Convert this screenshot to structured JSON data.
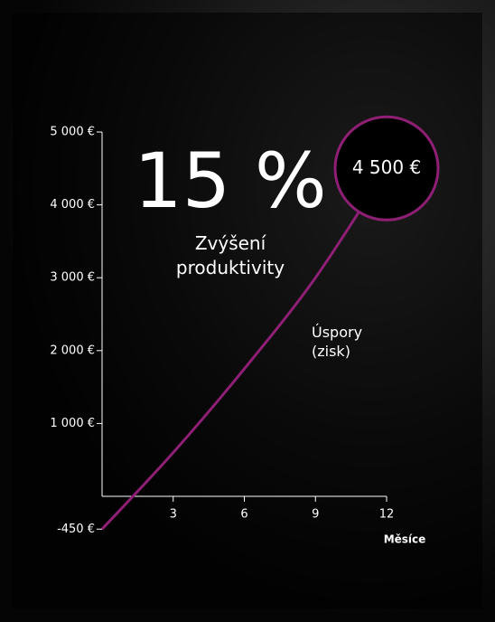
{
  "chart_data": {
    "type": "line",
    "annotations": [
      "15 %",
      "Zvýšení produktivity"
    ],
    "x_label": "Měsíce",
    "x": [
      0,
      3,
      6,
      9,
      12
    ],
    "xlim": [
      0,
      12
    ],
    "xticks": [
      3,
      6,
      9,
      12
    ],
    "ylim": [
      -450,
      5000
    ],
    "yticks": [
      {
        "value": -450,
        "label": "-450 €"
      },
      {
        "value": 1000,
        "label": "1 000 €"
      },
      {
        "value": 2000,
        "label": "2 000 €"
      },
      {
        "value": 3000,
        "label": "3 000 €"
      },
      {
        "value": 4000,
        "label": "4 000 €"
      },
      {
        "value": 5000,
        "label": "5 000 €"
      }
    ],
    "series": [
      {
        "name": "Úspory (zisk)",
        "color": "#8e1f74",
        "values": [
          -450,
          600,
          1750,
          3000,
          4500
        ],
        "value_labels": [
          null,
          null,
          null,
          null,
          "4 500 €"
        ]
      }
    ]
  }
}
